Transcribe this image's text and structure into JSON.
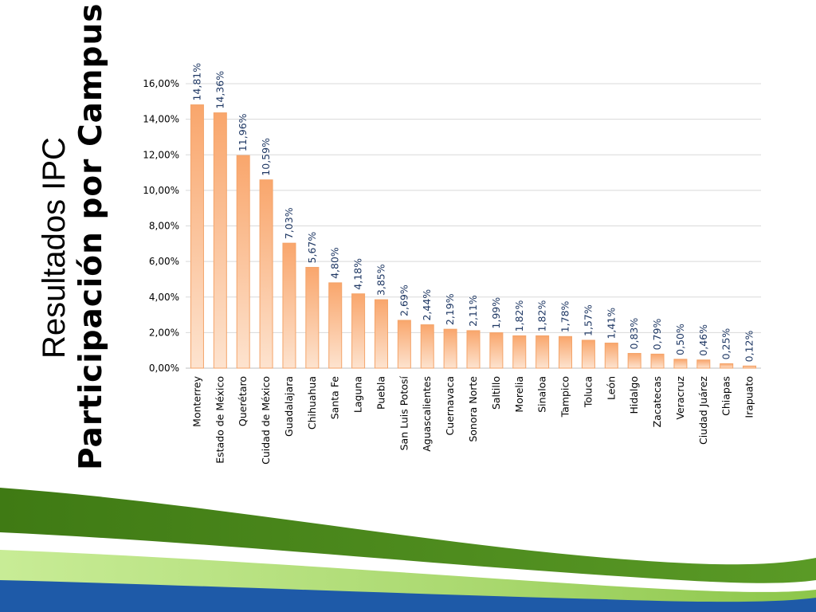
{
  "slide": {
    "title": "Resultados IPC",
    "subtitle": "Participación por Campus"
  },
  "colors": {
    "bar_fill_top": "#f9a66c",
    "bar_fill_bottom": "#fde3cf",
    "bar_stroke": "#f4a46a",
    "label_color": "#1f3864",
    "grid_color": "#d9d9d9",
    "wave_dark_green": "#4f8a1f",
    "wave_light_green": "#a9d86e",
    "wave_blue": "#1e5aa8"
  },
  "chart_data": {
    "type": "bar",
    "title": "",
    "xlabel": "",
    "ylabel": "",
    "ylim": [
      0,
      16
    ],
    "yticks": [
      "0,00%",
      "2,00%",
      "4,00%",
      "6,00%",
      "8,00%",
      "10,00%",
      "12,00%",
      "14,00%",
      "16,00%"
    ],
    "grid": true,
    "categories": [
      "Monterrey",
      "Estado de México",
      "Querétaro",
      "Cuidad de México",
      "Guadalajara",
      "Chihuahua",
      "Santa Fe",
      "Laguna",
      "Puebla",
      "San Luis Potosí",
      "Aguascalientes",
      "Cuernavaca",
      "Sonora Norte",
      "Saltillo",
      "Morelia",
      "Sinaloa",
      "Tampico",
      "Toluca",
      "León",
      "Hidalgo",
      "Zacatecas",
      "Veracruz",
      "Ciudad Juárez",
      "Chiapas",
      "Irapuato"
    ],
    "values": [
      14.81,
      14.36,
      11.96,
      10.59,
      7.03,
      5.67,
      4.8,
      4.18,
      3.85,
      2.69,
      2.44,
      2.19,
      2.11,
      1.99,
      1.82,
      1.82,
      1.78,
      1.57,
      1.41,
      0.83,
      0.79,
      0.5,
      0.46,
      0.25,
      0.12
    ],
    "data_labels": [
      "14,81%",
      "14,36%",
      "11,96%",
      "10,59%",
      "7,03%",
      "5,67%",
      "4,80%",
      "4,18%",
      "3,85%",
      "2,69%",
      "2,44%",
      "2,19%",
      "2,11%",
      "1,99%",
      "1,82%",
      "1,82%",
      "1,78%",
      "1,57%",
      "1,41%",
      "0,83%",
      "0,79%",
      "0,50%",
      "0,46%",
      "0,25%",
      "0,12%"
    ]
  }
}
